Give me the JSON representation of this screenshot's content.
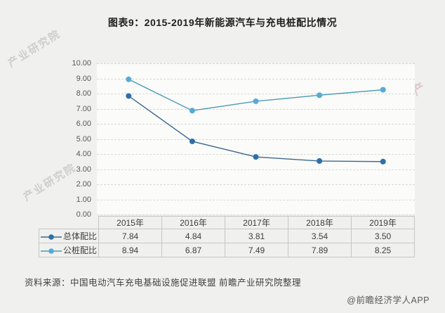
{
  "page": {
    "title": "图表9：2015-2019年新能源汽车与充电桩配比情况",
    "source_note": "资料来源：中国电动汽车充电基础设施促进联盟 前瞻产业研究院整理",
    "credit": "@前瞻经济学人APP",
    "watermarks": [
      "产业研究院",
      "前瞻产"
    ]
  },
  "chart_data": {
    "type": "line",
    "title": "图表9：2015-2019年新能源汽车与充电桩配比情况",
    "categories": [
      "2015年",
      "2016年",
      "2017年",
      "2018年",
      "2019年"
    ],
    "series": [
      {
        "name": "总体配比",
        "values": [
          7.84,
          4.84,
          3.81,
          3.54,
          3.5
        ],
        "line_color": "#3b688f",
        "marker_color": "#2e6fa8"
      },
      {
        "name": "公桩配比",
        "values": [
          8.94,
          6.87,
          7.49,
          7.89,
          8.25
        ],
        "line_color": "#4a9ab5",
        "marker_color": "#55aad6"
      }
    ],
    "xlabel": "",
    "ylabel": "",
    "ylim": [
      0,
      10
    ],
    "ytick_step": 1,
    "y_tick_labels": [
      "0.00",
      "1.00",
      "2.00",
      "3.00",
      "4.00",
      "5.00",
      "6.00",
      "7.00",
      "8.00",
      "9.00",
      "10.00"
    ],
    "grid": true,
    "gridline_style": "dashed",
    "legend_position": "table-left",
    "marker": "circle"
  },
  "table": {
    "header": [
      "2015年",
      "2016年",
      "2017年",
      "2018年",
      "2019年"
    ],
    "rows": [
      {
        "label": "总体配比",
        "values": [
          "7.84",
          "4.84",
          "3.81",
          "3.54",
          "3.50"
        ]
      },
      {
        "label": "公桩配比",
        "values": [
          "8.94",
          "6.87",
          "7.49",
          "7.89",
          "8.25"
        ]
      }
    ]
  },
  "colors": {
    "background": "#f0f0ee",
    "plot_background": "#fbfbfa",
    "gridline": "#d8d8d6",
    "table_border": "#c6c6c4",
    "axis_text": "#595959",
    "title_text": "#1f1f1f"
  }
}
